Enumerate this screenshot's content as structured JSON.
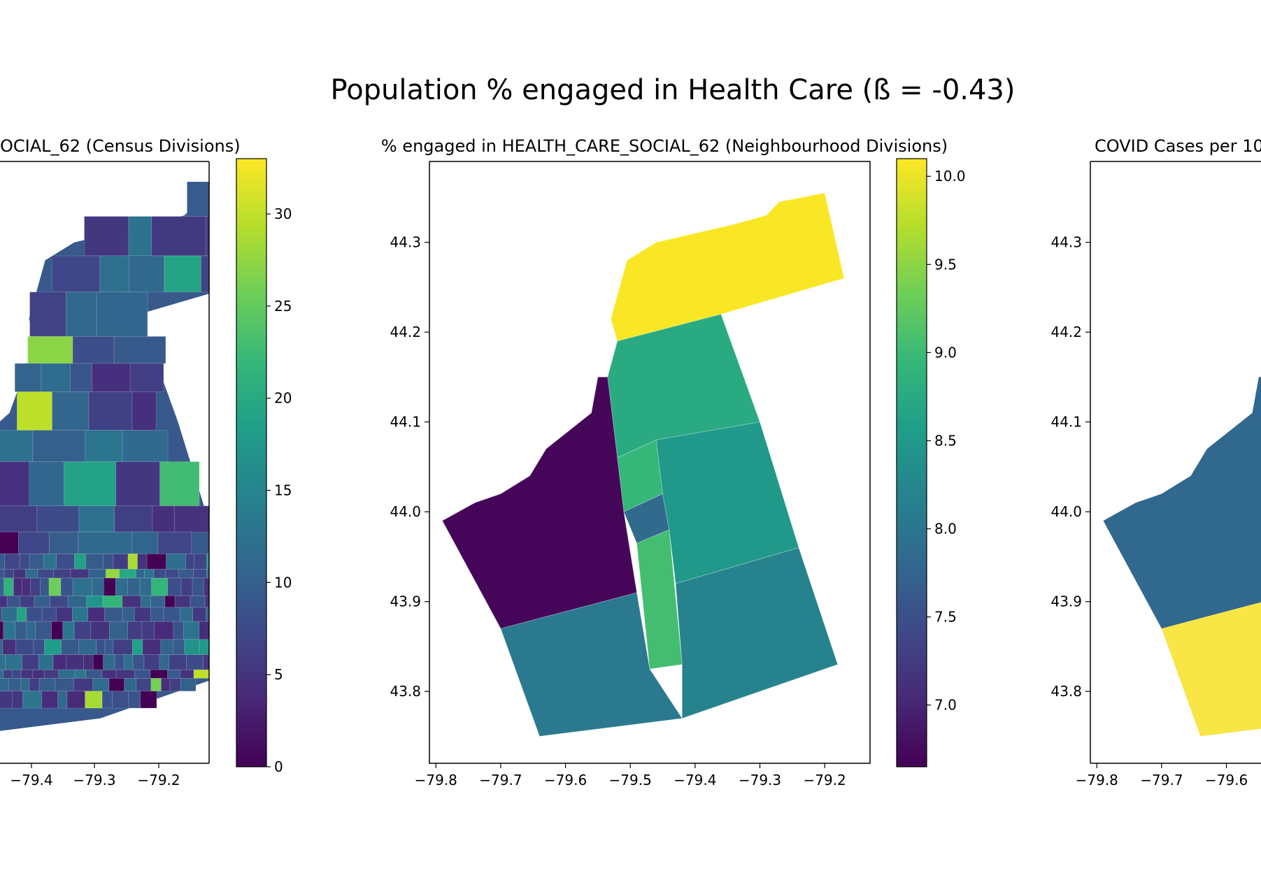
{
  "figure": {
    "suptitle": "Population % engaged in Health Care (ß = -0.43)"
  },
  "colors": {
    "viridis": [
      "#440154",
      "#482878",
      "#3e4989",
      "#31688e",
      "#26828e",
      "#1f9e89",
      "#35b779",
      "#6ece58",
      "#b5de2b",
      "#fde725"
    ],
    "axes_edge": "#000000",
    "background": "#ffffff"
  },
  "chart_data": [
    {
      "type": "heatmap",
      "title_visible": "OCIAL_62 (Census Divisions)",
      "xticks": [
        -79.4,
        -79.3,
        -79.2
      ],
      "xtick_labels": [
        "−79.4",
        "−79.3",
        "−79.2"
      ],
      "colorbar": {
        "range": [
          0,
          33
        ],
        "ticks": [
          0,
          5,
          10,
          15,
          20,
          25,
          30
        ],
        "tick_labels": [
          "0",
          "5",
          "10",
          "15",
          "20",
          "25",
          "30"
        ]
      },
      "note": "Choropleth with many small census tracts, mostly values 3-12"
    },
    {
      "type": "heatmap",
      "title": "% engaged in HEALTH_CARE_SOCIAL_62 (Neighbourhood Divisions)",
      "xlim": [
        -79.81,
        -79.13
      ],
      "ylim": [
        43.72,
        44.39
      ],
      "xticks": [
        -79.8,
        -79.7,
        -79.6,
        -79.5,
        -79.4,
        -79.3,
        -79.2
      ],
      "xtick_labels": [
        "−79.8",
        "−79.7",
        "−79.6",
        "−79.5",
        "−79.4",
        "−79.3",
        "−79.2"
      ],
      "yticks": [
        43.8,
        43.9,
        44.0,
        44.1,
        44.2,
        44.3
      ],
      "ytick_labels": [
        "43.8",
        "43.9",
        "44.0",
        "44.1",
        "44.2",
        "44.3"
      ],
      "colorbar": {
        "range": [
          6.65,
          10.1
        ],
        "ticks": [
          7.0,
          7.5,
          8.0,
          8.5,
          9.0,
          9.5,
          10.0
        ],
        "tick_labels": [
          "7.0",
          "7.5",
          "8.0",
          "8.5",
          "9.0",
          "9.5",
          "10.0"
        ]
      },
      "regions": [
        {
          "value": 10.08,
          "polygon": [
            [
              -79.52,
              44.19
            ],
            [
              -79.53,
              44.215
            ],
            [
              -79.505,
              44.28
            ],
            [
              -79.46,
              44.3
            ],
            [
              -79.4,
              44.31
            ],
            [
              -79.34,
              44.32
            ],
            [
              -79.29,
              44.33
            ],
            [
              -79.27,
              44.345
            ],
            [
              -79.2,
              44.355
            ],
            [
              -79.17,
              44.26
            ],
            [
              -79.36,
              44.22
            ]
          ]
        },
        {
          "value": 8.75,
          "polygon": [
            [
              -79.52,
              44.19
            ],
            [
              -79.36,
              44.22
            ],
            [
              -79.3,
              44.1
            ],
            [
              -79.46,
              44.08
            ],
            [
              -79.52,
              44.06
            ],
            [
              -79.535,
              44.15
            ]
          ]
        },
        {
          "value": 8.95,
          "polygon": [
            [
              -79.52,
              44.06
            ],
            [
              -79.46,
              44.08
            ],
            [
              -79.45,
              44.02
            ],
            [
              -79.51,
              44.0
            ]
          ]
        },
        {
          "value": 7.85,
          "polygon": [
            [
              -79.51,
              44.0
            ],
            [
              -79.45,
              44.02
            ],
            [
              -79.44,
              43.98
            ],
            [
              -79.49,
              43.965
            ]
          ]
        },
        {
          "value": 9.05,
          "polygon": [
            [
              -79.49,
              43.965
            ],
            [
              -79.44,
              43.98
            ],
            [
              -79.42,
              43.83
            ],
            [
              -79.47,
              43.825
            ]
          ]
        },
        {
          "value": 8.5,
          "polygon": [
            [
              -79.46,
              44.08
            ],
            [
              -79.3,
              44.1
            ],
            [
              -79.24,
              43.96
            ],
            [
              -79.43,
              43.92
            ],
            [
              -79.44,
              43.98
            ],
            [
              -79.45,
              44.02
            ]
          ]
        },
        {
          "value": 8.2,
          "polygon": [
            [
              -79.43,
              43.92
            ],
            [
              -79.24,
              43.96
            ],
            [
              -79.18,
              43.83
            ],
            [
              -79.42,
              43.77
            ],
            [
              -79.42,
              43.83
            ]
          ]
        },
        {
          "value": 8.05,
          "polygon": [
            [
              -79.7,
              43.87
            ],
            [
              -79.49,
              43.91
            ],
            [
              -79.47,
              43.825
            ],
            [
              -79.42,
              43.77
            ],
            [
              -79.64,
              43.75
            ]
          ]
        },
        {
          "value": 6.7,
          "polygon": [
            [
              -79.79,
              43.99
            ],
            [
              -79.74,
              44.01
            ],
            [
              -79.7,
              44.02
            ],
            [
              -79.655,
              44.04
            ],
            [
              -79.63,
              44.07
            ],
            [
              -79.56,
              44.11
            ],
            [
              -79.55,
              44.15
            ],
            [
              -79.535,
              44.15
            ],
            [
              -79.52,
              44.06
            ],
            [
              -79.51,
              44.0
            ],
            [
              -79.49,
              43.91
            ],
            [
              -79.7,
              43.87
            ]
          ]
        }
      ]
    },
    {
      "type": "heatmap",
      "title_visible": "COVID Cases per 10",
      "xticks": [
        -79.8,
        -79.7,
        -79.6
      ],
      "xtick_labels": [
        "−79.8",
        "−79.7",
        "−79.6"
      ],
      "yticks": [
        43.8,
        43.9,
        44.0,
        44.1,
        44.2,
        44.3
      ],
      "ytick_labels": [
        "43.8",
        "43.9",
        "44.0",
        "44.1",
        "44.2",
        "44.3"
      ],
      "regions_visible": [
        {
          "color": "#31688e",
          "label": "north"
        },
        {
          "color": "#f8e546",
          "label": "south"
        }
      ]
    }
  ]
}
